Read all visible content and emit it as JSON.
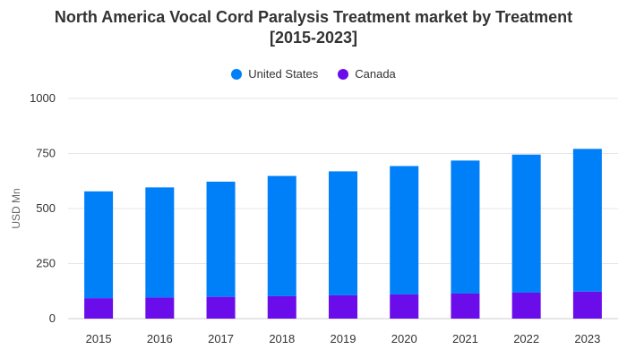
{
  "chart_data": {
    "type": "bar",
    "stacked": true,
    "title_line1": "North America Vocal Cord Paralysis Treatment market by Treatment",
    "title_line2": "[2015-2023]",
    "xlabel": "",
    "ylabel": "USD Mn",
    "ylim": [
      0,
      1000
    ],
    "yticks": [
      0,
      250,
      500,
      750,
      1000
    ],
    "grid": true,
    "legend_position": "top-center",
    "categories": [
      "2015",
      "2016",
      "2017",
      "2018",
      "2019",
      "2020",
      "2021",
      "2022",
      "2023"
    ],
    "series": [
      {
        "name": "Canada",
        "color": "#6a0dea",
        "values": [
          93,
          96,
          99,
          102,
          106,
          110,
          114,
          118,
          123
        ]
      },
      {
        "name": "United States",
        "color": "#0080f8",
        "values": [
          485,
          500,
          523,
          546,
          563,
          583,
          604,
          627,
          648
        ]
      }
    ],
    "legend": [
      {
        "label": "United States",
        "color": "#0080f8"
      },
      {
        "label": "Canada",
        "color": "#6a0dea"
      }
    ]
  }
}
